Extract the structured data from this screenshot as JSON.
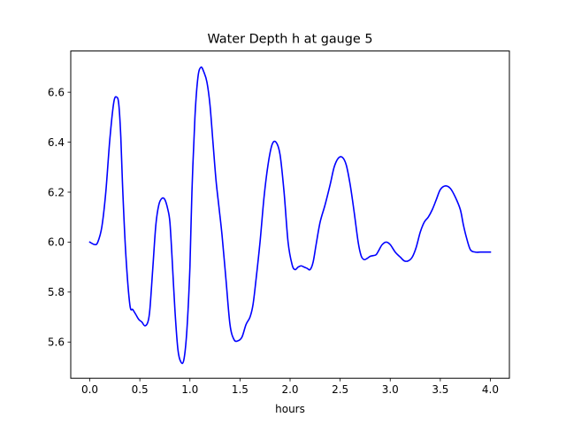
{
  "chart_data": {
    "type": "line",
    "title": "Water Depth h at gauge 5",
    "xlabel": "hours",
    "ylabel": "",
    "xlim": [
      -0.19,
      4.19
    ],
    "ylim": [
      5.455,
      6.765
    ],
    "xticks": [
      0.0,
      0.5,
      1.0,
      1.5,
      2.0,
      2.5,
      3.0,
      3.5,
      4.0
    ],
    "xtick_labels": [
      "0.0",
      "0.5",
      "1.0",
      "1.5",
      "2.0",
      "2.5",
      "3.0",
      "3.5",
      "4.0"
    ],
    "yticks": [
      5.6,
      5.8,
      6.0,
      6.2,
      6.4,
      6.6
    ],
    "ytick_labels": [
      "5.6",
      "5.8",
      "6.0",
      "6.2",
      "6.4",
      "6.6"
    ],
    "grid": false,
    "series": [
      {
        "color": "#0000ff",
        "x": [
          0.0,
          0.05,
          0.08,
          0.12,
          0.16,
          0.2,
          0.24,
          0.27,
          0.29,
          0.31,
          0.33,
          0.36,
          0.4,
          0.43,
          0.46,
          0.49,
          0.52,
          0.55,
          0.58,
          0.6,
          0.63,
          0.66,
          0.69,
          0.72,
          0.75,
          0.78,
          0.8,
          0.82,
          0.85,
          0.88,
          0.91,
          0.94,
          0.97,
          1.0,
          1.02,
          1.05,
          1.08,
          1.11,
          1.14,
          1.17,
          1.2,
          1.23,
          1.26,
          1.29,
          1.32,
          1.36,
          1.4,
          1.44,
          1.48,
          1.52,
          1.56,
          1.6,
          1.63,
          1.66,
          1.7,
          1.74,
          1.78,
          1.82,
          1.86,
          1.9,
          1.94,
          1.98,
          2.02,
          2.05,
          2.08,
          2.11,
          2.14,
          2.17,
          2.2,
          2.23,
          2.26,
          2.3,
          2.35,
          2.4,
          2.44,
          2.48,
          2.52,
          2.56,
          2.6,
          2.64,
          2.68,
          2.71,
          2.74,
          2.77,
          2.8,
          2.83,
          2.86,
          2.89,
          2.92,
          2.96,
          3.0,
          3.05,
          3.1,
          3.14,
          3.18,
          3.22,
          3.26,
          3.3,
          3.34,
          3.38,
          3.42,
          3.46,
          3.5,
          3.55,
          3.6,
          3.65,
          3.7,
          3.73,
          3.76,
          3.8,
          3.85,
          3.9,
          3.95,
          4.0
        ],
        "y": [
          6.0,
          5.99,
          6.0,
          6.06,
          6.2,
          6.41,
          6.56,
          6.58,
          6.55,
          6.42,
          6.2,
          5.95,
          5.75,
          5.73,
          5.71,
          5.69,
          5.68,
          5.665,
          5.68,
          5.73,
          5.9,
          6.07,
          6.15,
          6.175,
          6.17,
          6.13,
          6.08,
          5.95,
          5.73,
          5.57,
          5.52,
          5.53,
          5.65,
          5.9,
          6.2,
          6.5,
          6.66,
          6.7,
          6.68,
          6.64,
          6.55,
          6.4,
          6.25,
          6.14,
          6.03,
          5.85,
          5.67,
          5.61,
          5.605,
          5.62,
          5.67,
          5.7,
          5.75,
          5.85,
          6.0,
          6.18,
          6.31,
          6.39,
          6.4,
          6.35,
          6.2,
          6.0,
          5.91,
          5.89,
          5.9,
          5.905,
          5.9,
          5.895,
          5.89,
          5.92,
          5.99,
          6.08,
          6.15,
          6.23,
          6.3,
          6.335,
          6.34,
          6.31,
          6.23,
          6.12,
          6.0,
          5.945,
          5.93,
          5.935,
          5.943,
          5.946,
          5.95,
          5.97,
          5.99,
          6.0,
          5.99,
          5.96,
          5.94,
          5.925,
          5.925,
          5.94,
          5.98,
          6.04,
          6.08,
          6.1,
          6.13,
          6.17,
          6.21,
          6.225,
          6.215,
          6.18,
          6.13,
          6.07,
          6.02,
          5.97,
          5.96,
          5.96,
          5.96,
          5.96
        ]
      }
    ]
  }
}
